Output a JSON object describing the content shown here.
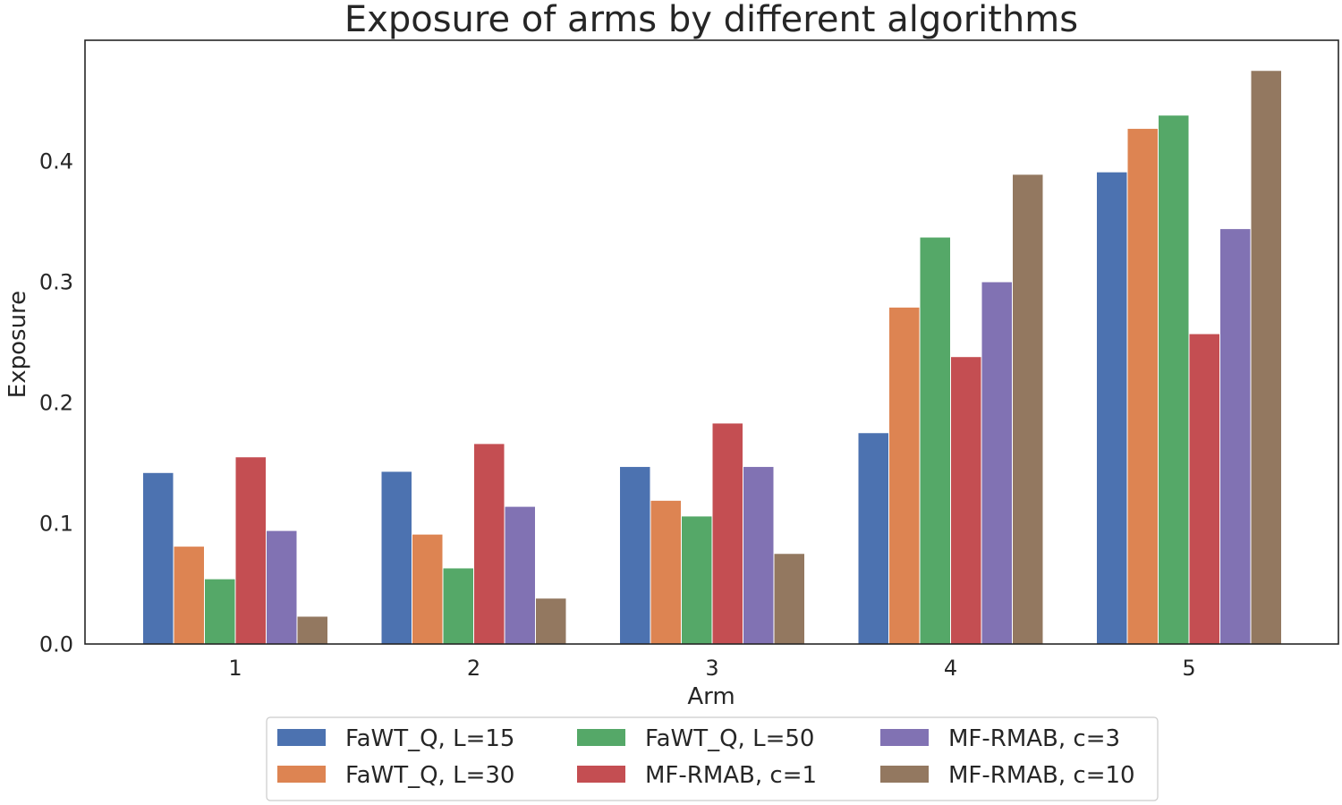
{
  "chart_data": {
    "type": "bar",
    "title": "Exposure of arms by different algorithms",
    "xlabel": "Arm",
    "ylabel": "Exposure",
    "categories": [
      "1",
      "2",
      "3",
      "4",
      "5"
    ],
    "ylim": [
      0,
      0.5
    ],
    "yticks": [
      "0.0",
      "0.1",
      "0.2",
      "0.3",
      "0.4"
    ],
    "ytick_values": [
      0,
      0.1,
      0.2,
      0.3,
      0.4
    ],
    "grid": false,
    "legend_position": "bottom-center",
    "series": [
      {
        "name": "FaWT_Q, L=15",
        "color": "#4c72b0",
        "values": [
          0.142,
          0.143,
          0.147,
          0.175,
          0.391
        ]
      },
      {
        "name": "FaWT_Q, L=30",
        "color": "#dd8452",
        "values": [
          0.081,
          0.091,
          0.119,
          0.279,
          0.427
        ]
      },
      {
        "name": "FaWT_Q, L=50",
        "color": "#55a868",
        "values": [
          0.054,
          0.063,
          0.106,
          0.337,
          0.438
        ]
      },
      {
        "name": "MF-RMAB, c=1",
        "color": "#c44e52",
        "values": [
          0.155,
          0.166,
          0.183,
          0.238,
          0.257
        ]
      },
      {
        "name": "MF-RMAB, c=3",
        "color": "#8172b3",
        "values": [
          0.094,
          0.114,
          0.147,
          0.3,
          0.344
        ]
      },
      {
        "name": "MF-RMAB, c=10",
        "color": "#937860",
        "values": [
          0.023,
          0.038,
          0.075,
          0.389,
          0.475
        ]
      }
    ]
  }
}
